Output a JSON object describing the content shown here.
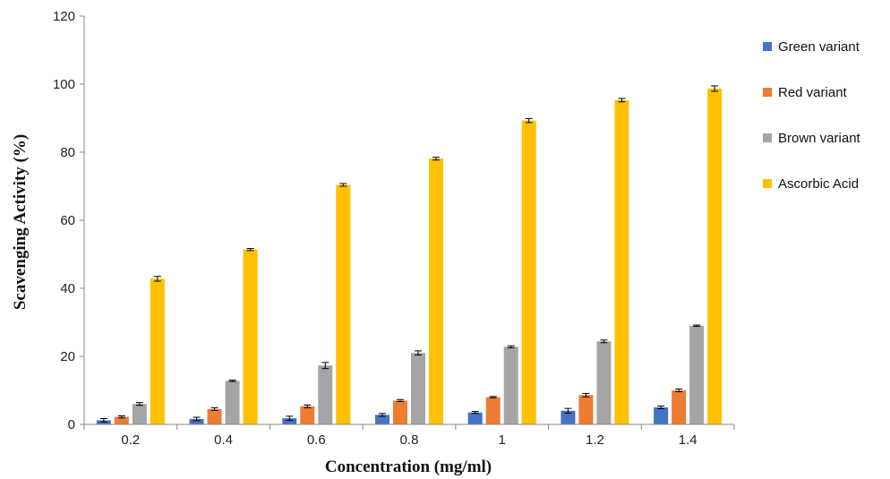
{
  "chart_data": {
    "type": "bar",
    "title": "",
    "xlabel": "Concentration (mg/ml)",
    "ylabel": "Scavenging Activity (%)",
    "ylim": [
      0,
      120
    ],
    "yticks": [
      "0",
      "20",
      "40",
      "60",
      "80",
      "100",
      "120"
    ],
    "categories": [
      "0.2",
      "0.4",
      "0.6",
      "0.8",
      "1",
      "1.2",
      "1.4"
    ],
    "grid": false,
    "legend_position": "right",
    "error_bars": true,
    "series": [
      {
        "name": "Green variant",
        "color": "#4472C4",
        "values": [
          1.2,
          1.6,
          1.8,
          2.8,
          3.5,
          4.0,
          5.0
        ],
        "errors": [
          0.5,
          0.5,
          0.6,
          0.4,
          0.3,
          0.7,
          0.4
        ]
      },
      {
        "name": "Red variant",
        "color": "#ED7D31",
        "values": [
          2.2,
          4.5,
          5.3,
          7.0,
          8.0,
          8.6,
          10.0
        ],
        "errors": [
          0.3,
          0.4,
          0.4,
          0.3,
          0.2,
          0.5,
          0.4
        ]
      },
      {
        "name": "Brown variant",
        "color": "#A5A5A5",
        "values": [
          6.0,
          12.8,
          17.3,
          21.0,
          22.8,
          24.4,
          29.0
        ],
        "errors": [
          0.4,
          0.2,
          0.9,
          0.6,
          0.3,
          0.4,
          0.2
        ]
      },
      {
        "name": "Ascorbic Acid",
        "color": "#FFC000",
        "values": [
          42.8,
          51.4,
          70.4,
          78.1,
          89.3,
          95.3,
          98.7
        ],
        "errors": [
          0.7,
          0.3,
          0.4,
          0.4,
          0.6,
          0.5,
          0.8
        ]
      }
    ]
  }
}
